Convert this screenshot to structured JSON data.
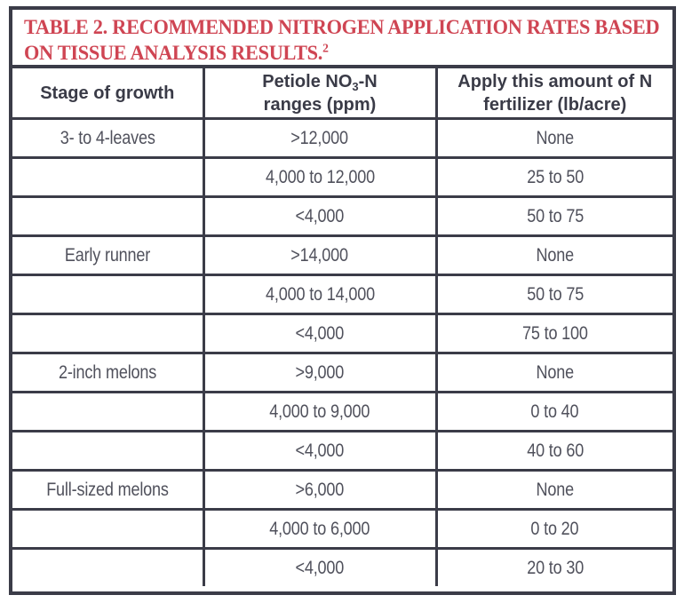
{
  "colors": {
    "title_red": "#CF4553",
    "border_slate": "#3B3C48",
    "header_text": "#3A3B47",
    "body_text": "#50515C",
    "background": "#FFFFFF"
  },
  "title": {
    "line1": "TABLE 2. RECOMMENDED NITROGEN APPLICATION RATES BASED",
    "line2": "ON TISSUE ANALYSIS RESULTS.",
    "footnote_superscript": "2"
  },
  "table": {
    "headers": {
      "col1": "Stage of growth",
      "col2": {
        "line1_pre": "Petiole NO",
        "subscript": "3",
        "line1_post": "-N",
        "line2": "ranges (ppm)"
      },
      "col3": {
        "line1": "Apply this amount of N",
        "line2": "fertilizer (lb/acre)"
      }
    },
    "rows": [
      {
        "stage": "3- to 4-leaves",
        "range": ">12,000",
        "rate": "None"
      },
      {
        "stage": "",
        "range": "4,000 to 12,000",
        "rate": "25 to 50"
      },
      {
        "stage": "",
        "range": "<4,000",
        "rate": "50 to 75"
      },
      {
        "stage": "Early runner",
        "range": ">14,000",
        "rate": "None"
      },
      {
        "stage": "",
        "range": "4,000 to 14,000",
        "rate": "50 to 75"
      },
      {
        "stage": "",
        "range": "<4,000",
        "rate": "75 to 100"
      },
      {
        "stage": "2-inch melons",
        "range": ">9,000",
        "rate": "None"
      },
      {
        "stage": "",
        "range": "4,000 to 9,000",
        "rate": "0 to 40"
      },
      {
        "stage": "",
        "range": "<4,000",
        "rate": "40 to 60"
      },
      {
        "stage": "Full-sized melons",
        "range": ">6,000",
        "rate": "None"
      },
      {
        "stage": "",
        "range": "4,000 to 6,000",
        "rate": "0 to 20"
      },
      {
        "stage": "",
        "range": "<4,000",
        "rate": "20 to 30"
      }
    ]
  }
}
